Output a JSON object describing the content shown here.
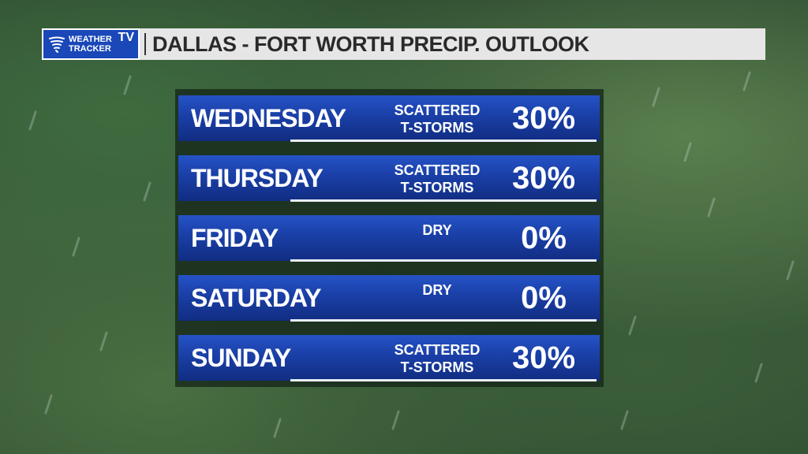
{
  "header": {
    "logo": {
      "line1": "WEATHER",
      "line2": "TRACKER",
      "badge": "TV"
    },
    "title": "DALLAS - FORT WORTH PRECIP. OUTLOOK"
  },
  "forecast": [
    {
      "day": "WEDNESDAY",
      "condition_line1": "SCATTERED",
      "condition_line2": "T-STORMS",
      "chance": "30%"
    },
    {
      "day": "THURSDAY",
      "condition_line1": "SCATTERED",
      "condition_line2": "T-STORMS",
      "chance": "30%"
    },
    {
      "day": "FRIDAY",
      "condition_line1": "DRY",
      "condition_line2": "",
      "chance": "0%"
    },
    {
      "day": "SATURDAY",
      "condition_line1": "DRY",
      "condition_line2": "",
      "chance": "0%"
    },
    {
      "day": "SUNDAY",
      "condition_line1": "SCATTERED",
      "condition_line2": "T-STORMS",
      "chance": "30%"
    }
  ],
  "colors": {
    "row_blue": "#1a3fa6",
    "logo_blue": "#1a48b8",
    "header_bg": "#e6e6e6"
  }
}
